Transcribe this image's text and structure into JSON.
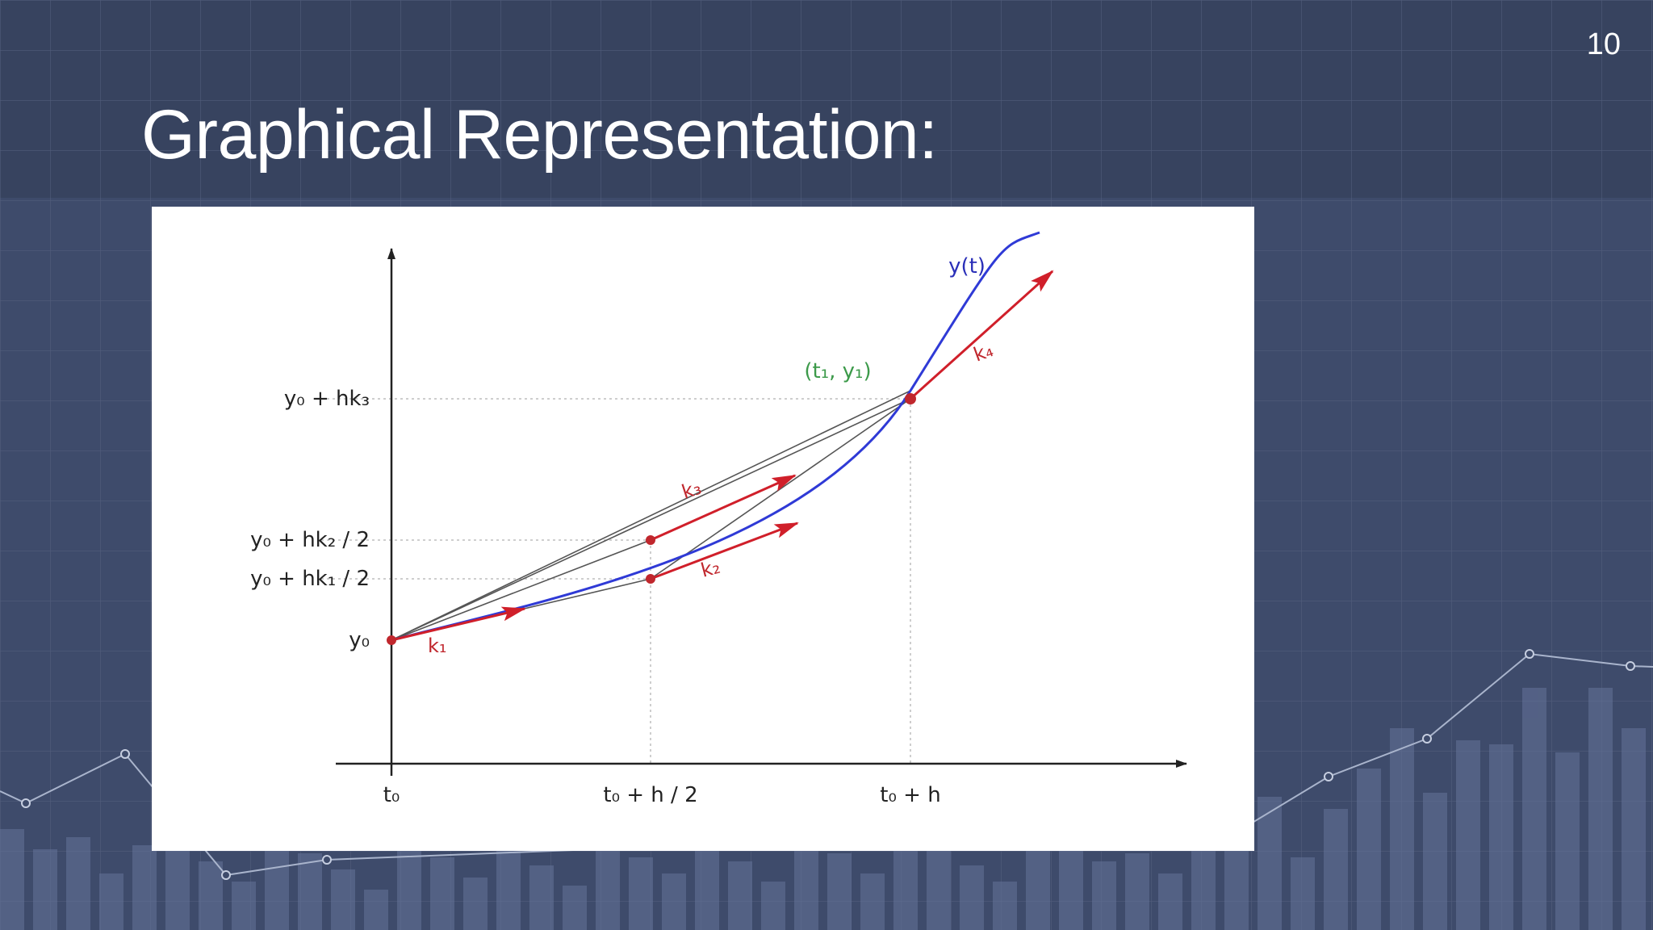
{
  "slide": {
    "page_number": "10",
    "title": "Graphical Representation:",
    "colors": {
      "background": "#3d4a6a",
      "band": "#3a4766",
      "grid": "#56627f",
      "bars": "#5a6788",
      "text": "#ffffff"
    }
  },
  "figure": {
    "y_labels": [
      "y₀ + hk₃",
      "y₀ + hk₂ / 2",
      "y₀ + hk₁ / 2",
      "y₀"
    ],
    "x_labels": [
      "t₀",
      "t₀ + h / 2",
      "t₀ + h"
    ],
    "curve_label": "y(t)",
    "point_label": "(t₁, y₁)",
    "slope_labels": [
      "k₁",
      "k₂",
      "k₃",
      "k₄"
    ],
    "colors": {
      "curve": "#2f3ad6",
      "slopes": "#d01f2a",
      "point_label": "#3c9a4a",
      "axes": "#222222",
      "chords": "#555555"
    }
  }
}
